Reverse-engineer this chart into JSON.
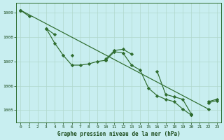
{
  "title": "Graphe pression niveau de la mer (hPa)",
  "background_color": "#c8eef0",
  "grid_color": "#b0d8cc",
  "line_color": "#2d6b2d",
  "marker_color": "#2d6b2d",
  "hours": [
    0,
    1,
    2,
    3,
    4,
    5,
    6,
    7,
    8,
    9,
    10,
    11,
    12,
    13,
    14,
    15,
    16,
    17,
    18,
    19,
    20,
    21,
    22,
    23
  ],
  "series1": [
    1009.1,
    1008.85,
    null,
    1008.35,
    1007.75,
    1007.25,
    1006.85,
    1006.85,
    1006.9,
    1007.0,
    1007.05,
    1007.4,
    1007.35,
    1006.85,
    1006.65,
    1005.9,
    1005.6,
    1005.45,
    1005.35,
    1005.05,
    1004.8,
    null,
    1005.3,
    1005.4
  ],
  "series2": [
    1009.1,
    null,
    null,
    1008.35,
    1008.1,
    null,
    1007.25,
    null,
    null,
    null,
    1007.1,
    1007.45,
    1007.5,
    1007.3,
    null,
    null,
    1006.6,
    1005.65,
    1005.55,
    1005.45,
    1004.85,
    null,
    1005.35,
    1005.45
  ],
  "series3": [
    1009.1,
    null,
    null,
    null,
    null,
    null,
    null,
    null,
    null,
    null,
    1007.05,
    null,
    null,
    null,
    null,
    null,
    null,
    null,
    null,
    null,
    1004.8,
    null,
    1005.05,
    null
  ],
  "ylim": [
    1004.5,
    1009.4
  ],
  "xlim": [
    -0.5,
    23.5
  ],
  "yticks": [
    1005,
    1006,
    1007,
    1008,
    1009
  ],
  "xticks": [
    0,
    1,
    2,
    3,
    4,
    5,
    6,
    7,
    8,
    9,
    10,
    11,
    12,
    13,
    14,
    15,
    16,
    17,
    18,
    19,
    20,
    21,
    22,
    23
  ],
  "figsize": [
    3.2,
    2.0
  ],
  "dpi": 100
}
